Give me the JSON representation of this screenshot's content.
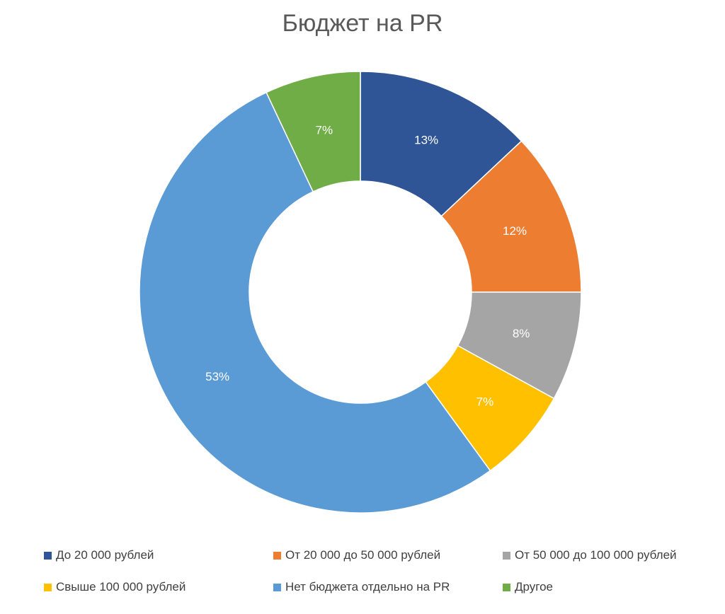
{
  "chart_data": {
    "type": "pie",
    "title": "Бюджет на PR",
    "donut": true,
    "legend_position": "bottom",
    "categories": [
      "До 20 000 рублей",
      "От 20 000 до 50 000 рублей",
      "От 50 000 до 100 000 рублей",
      "Свыше 100 000 рублей",
      "Нет бюджета отдельно на PR",
      "Другое"
    ],
    "values": [
      13,
      12,
      8,
      7,
      53,
      7
    ],
    "labels": [
      "13%",
      "12%",
      "8%",
      "7%",
      "53%",
      "7%"
    ],
    "colors": [
      "#2F5597",
      "#ED7D31",
      "#A5A5A5",
      "#FFC000",
      "#5B9BD5",
      "#70AD47"
    ]
  }
}
